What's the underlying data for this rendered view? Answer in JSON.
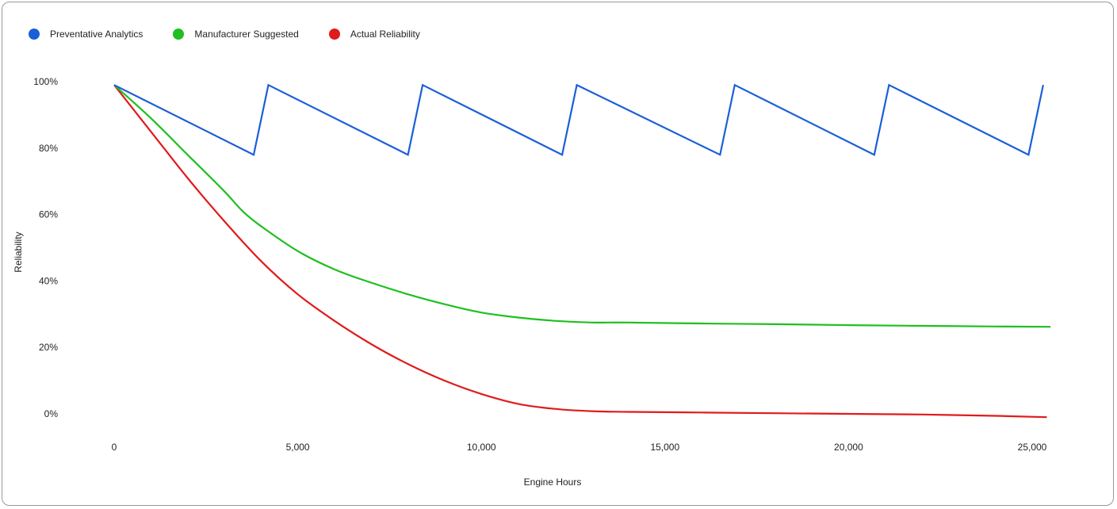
{
  "chart_data": {
    "type": "line",
    "title": "",
    "xlabel": "Engine Hours",
    "ylabel": "Reliability",
    "xlim": [
      0,
      25500
    ],
    "ylim": [
      0,
      1.0
    ],
    "x_ticks": [
      0,
      5000,
      10000,
      15000,
      20000,
      25000
    ],
    "x_tick_labels": [
      "0",
      "5,000",
      "10,000",
      "15,000",
      "20,000",
      "25,000"
    ],
    "y_ticks": [
      0,
      0.2,
      0.4,
      0.6,
      0.8,
      1.0
    ],
    "y_tick_labels": [
      "0%",
      "20%",
      "40%",
      "60%",
      "80%",
      "100%"
    ],
    "legend_position": "top-left",
    "grid": false,
    "series": [
      {
        "name": "Preventative Analytics",
        "color": "#1a5fd8",
        "x": [
          0,
          3800,
          4200,
          8000,
          8400,
          12200,
          12600,
          16500,
          16900,
          20700,
          21100,
          24900,
          25300
        ],
        "y": [
          0.99,
          0.78,
          0.99,
          0.78,
          0.99,
          0.78,
          0.99,
          0.78,
          0.99,
          0.78,
          0.99,
          0.78,
          0.99
        ]
      },
      {
        "name": "Manufacturer Suggested",
        "color": "#1fbf1f",
        "x": [
          0,
          1000,
          2000,
          3000,
          3500,
          4000,
          5000,
          6000,
          7000,
          8000,
          9000,
          10000,
          11000,
          12000,
          13000,
          14000,
          16000,
          18000,
          20000,
          22000,
          24000,
          25500
        ],
        "y": [
          0.99,
          0.89,
          0.78,
          0.67,
          0.61,
          0.565,
          0.49,
          0.435,
          0.395,
          0.36,
          0.33,
          0.305,
          0.29,
          0.28,
          0.275,
          0.275,
          0.272,
          0.27,
          0.267,
          0.265,
          0.263,
          0.262
        ]
      },
      {
        "name": "Actual Reliability",
        "color": "#e01b1b",
        "x": [
          0,
          1000,
          2000,
          3000,
          4000,
          5000,
          6000,
          7000,
          8000,
          9000,
          10000,
          11000,
          12000,
          13000,
          14000,
          16000,
          18000,
          20000,
          22000,
          24000,
          25400
        ],
        "y": [
          0.99,
          0.85,
          0.71,
          0.58,
          0.46,
          0.36,
          0.28,
          0.21,
          0.15,
          0.1,
          0.06,
          0.03,
          0.015,
          0.008,
          0.006,
          0.004,
          0.002,
          0.0,
          -0.002,
          -0.006,
          -0.01
        ]
      }
    ]
  }
}
